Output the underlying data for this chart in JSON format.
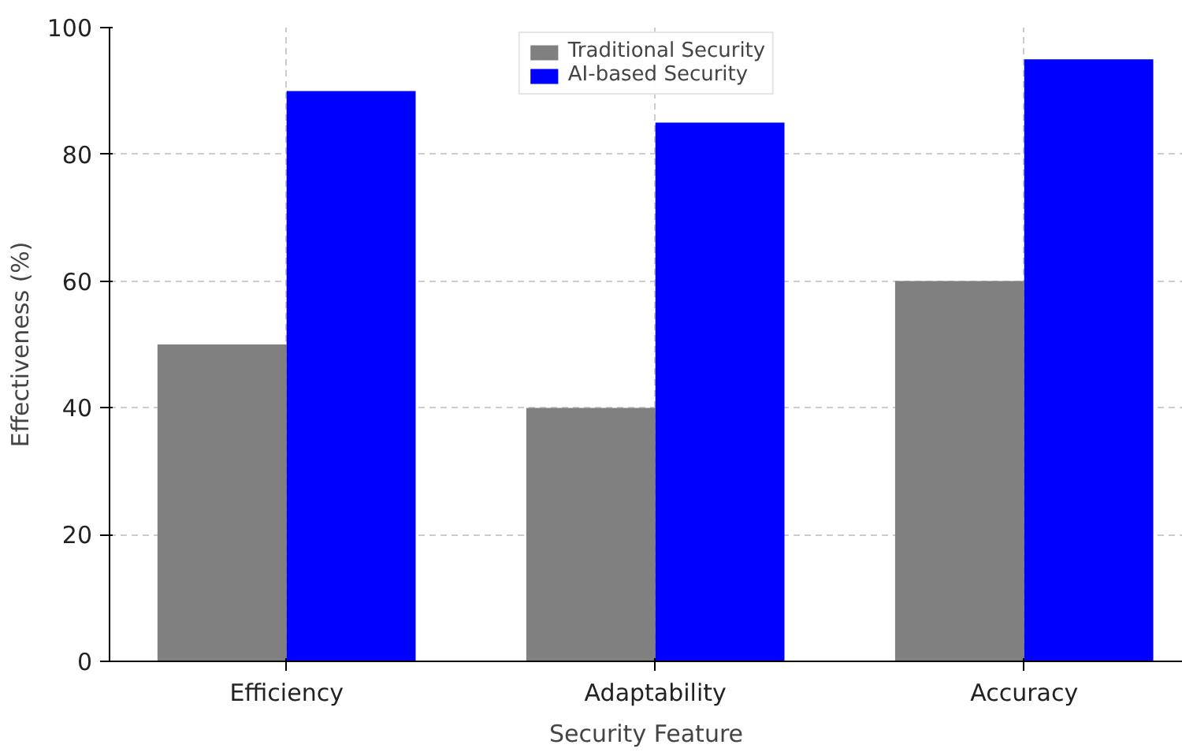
{
  "chart_data": {
    "type": "bar",
    "xlabel": "Security Feature",
    "ylabel": "Effectiveness (%)",
    "categories": [
      "Efficiency",
      "Adaptability",
      "Accuracy"
    ],
    "series": [
      {
        "name": "Traditional Security",
        "color": "#808080",
        "values": [
          50,
          40,
          60
        ]
      },
      {
        "name": "AI-based Security",
        "color": "#0000ff",
        "values": [
          90,
          85,
          95
        ]
      }
    ],
    "ylim": [
      0,
      100
    ],
    "yticks": [
      0,
      20,
      40,
      60,
      80,
      100
    ],
    "grid": true,
    "legend": "top"
  }
}
